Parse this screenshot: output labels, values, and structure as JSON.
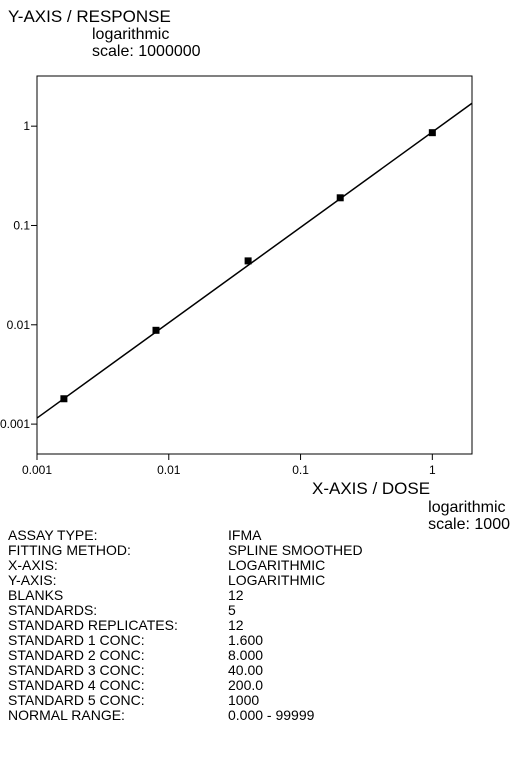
{
  "chart_data": {
    "type": "line",
    "xlabel": "X-AXIS / DOSE",
    "xlabel_scale_lines": [
      "logarithmic",
      "scale: 1000"
    ],
    "ylabel": "Y-AXIS / RESPONSE",
    "ylabel_scale_lines": [
      "logarithmic",
      "scale: 1000000"
    ],
    "x_scale": "log",
    "y_scale": "log",
    "xlim": [
      0.001,
      2.0
    ],
    "ylim": [
      0.0005,
      3.2
    ],
    "x_ticks": [
      0.001,
      0.01,
      0.1,
      1
    ],
    "x_tick_labels": [
      "0.001",
      "0.01",
      "0.1",
      "1"
    ],
    "y_ticks": [
      0.001,
      0.01,
      0.1,
      1
    ],
    "y_tick_labels": [
      "0.001",
      "0.01",
      "0.1",
      "1"
    ],
    "grid": false,
    "series": [
      {
        "points": [
          {
            "x": 0.0016,
            "y": 0.0018
          },
          {
            "x": 0.008,
            "y": 0.0088
          },
          {
            "x": 0.04,
            "y": 0.044
          },
          {
            "x": 0.2,
            "y": 0.19
          },
          {
            "x": 1.0,
            "y": 0.86
          }
        ],
        "fit_line": [
          {
            "x": 0.001,
            "y": 0.00115
          },
          {
            "x": 2.0,
            "y": 1.7
          }
        ]
      }
    ]
  },
  "assay_info": [
    {
      "label": "ASSAY TYPE:",
      "value": "IFMA"
    },
    {
      "label": "FITTING METHOD:",
      "value": "SPLINE SMOOTHED"
    },
    {
      "label": "X-AXIS:",
      "value": "LOGARITHMIC"
    },
    {
      "label": "Y-AXIS:",
      "value": "LOGARITHMIC"
    },
    {
      "label": "BLANKS",
      "value": "12"
    },
    {
      "label": "STANDARDS:",
      "value": "5"
    },
    {
      "label": "STANDARD REPLICATES:",
      "value": "12"
    },
    {
      "label": "STANDARD  1  CONC:",
      "value": "1.600"
    },
    {
      "label": "STANDARD  2  CONC:",
      "value": "8.000"
    },
    {
      "label": "STANDARD  3  CONC:",
      "value": "40.00"
    },
    {
      "label": "STANDARD  4  CONC:",
      "value": "200.0"
    },
    {
      "label": "STANDARD  5  CONC:",
      "value": "1000"
    },
    {
      "label": "NORMAL RANGE:",
      "value": "0.000 - 99999"
    }
  ]
}
